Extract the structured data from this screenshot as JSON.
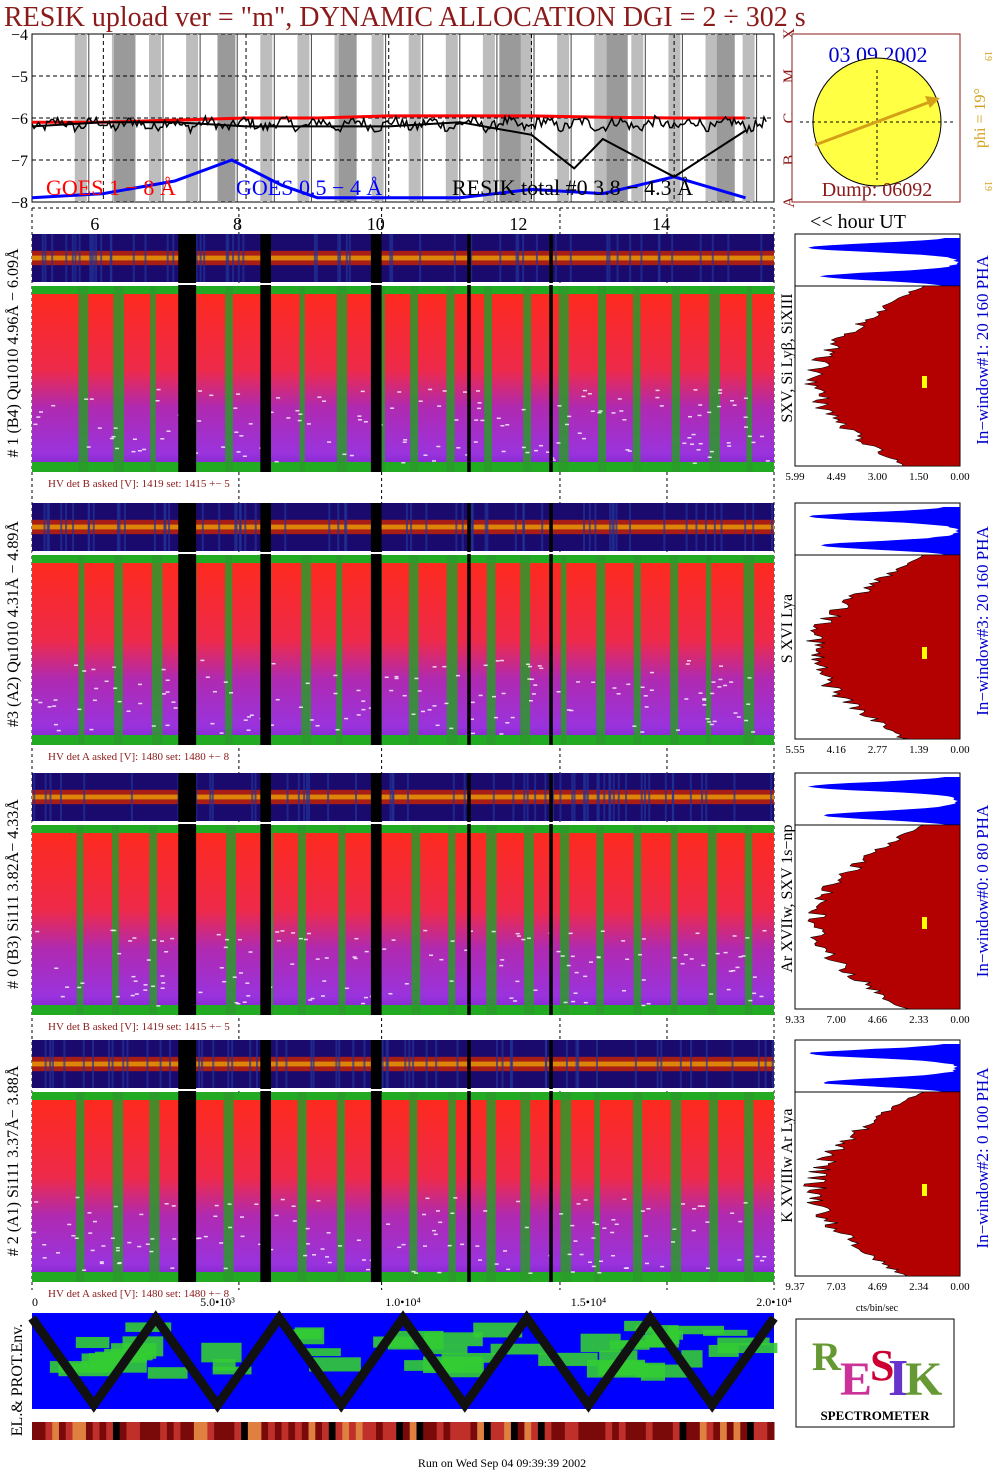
{
  "title": "RESIK upload ver = \"m\", DYNAMIC ALLOCATION  DGI =   2 ÷ 302 s",
  "colors": {
    "title": "#8b1a1a",
    "goes_long": "#ff0000",
    "goes_short": "#0000ff",
    "resik_total": "#000000",
    "pha_hist": "#0000ff",
    "pha_fill": "#b30000",
    "marker": "#ffff00",
    "sun": "#ffff44",
    "phi": "#d4a017",
    "env_bg": "#0000ff",
    "env_green": "#33cc33"
  },
  "goes_panel": {
    "y_ticks": [
      "−4",
      "−5",
      "−6",
      "−7",
      "−8"
    ],
    "class_labels": [
      "X",
      "M",
      "C",
      "B",
      "A"
    ],
    "legend": {
      "goes_long": "GOES 1 − 8 Å",
      "goes_short": "GOES 0.5 − 4 Å",
      "resik_total": "RESIK total #0  3.8 − 4.3 Å"
    }
  },
  "hour_axis": {
    "ticks": [
      "6",
      "8",
      "10",
      "12",
      "14"
    ],
    "label": "<< hour UT"
  },
  "sun_panel": {
    "date": "03 09 2002",
    "dump": "Dump: 06092",
    "phi": "phi = 19°",
    "phi_small_top": "19",
    "phi_small_bottom": "19"
  },
  "channels": [
    {
      "label": "# 1 (B4) Qu1010  4.96Å − 6.09Å",
      "line_label": "SXV, Si Lyβ, SiXIII",
      "window": "In−window#1:   20  160  PHA",
      "x_ticks": [
        "5.99",
        "4.49",
        "3.00",
        "1.50",
        "0.00"
      ],
      "hv": "HV det B asked [V]:  1419  set:   1415  +−     5"
    },
    {
      "label": "#3 (A2) Qu1010  4.31Å − 4.89Å",
      "line_label": "S XVI Lya",
      "window": "In−window#3:   20  160  PHA",
      "x_ticks": [
        "5.55",
        "4.16",
        "2.77",
        "1.39",
        "0.00"
      ],
      "hv": "HV det A asked [V]:  1480  set:   1480  +−     8"
    },
    {
      "label": "# 0 (B3) Si111  3.82Å− 4.33Å",
      "line_label": "Ar XVIIw,  SXV 1s−np",
      "window": "In−window#0:    0   80  PHA",
      "x_ticks": [
        "9.33",
        "7.00",
        "4.66",
        "2.33",
        "0.00"
      ],
      "hv": "HV det B asked [V]:  1419  set:   1415  +−     5"
    },
    {
      "label": "# 2 (A1) Si111  3.37Å− 3.88Å",
      "line_label": "K XVIIIw  Ar Lya",
      "window": "In−window#2:    0  100  PHA",
      "x_ticks": [
        "9.37",
        "7.03",
        "4.69",
        "2.34",
        "0.00"
      ],
      "hv": "HV det A asked [V]:  1480  set:   1480  +−     8"
    }
  ],
  "pha_xlabel": "cts/bin/sec",
  "env_panel": {
    "label": "EL.& PROT.Env.",
    "x_ticks": [
      "0",
      "5.0•10³",
      "1.0•10⁴",
      "1.5•10⁴",
      "2.0•10⁴"
    ]
  },
  "logo": {
    "text": "SPECTROMETER",
    "fine_print": ""
  },
  "footer": "Run on Wed Sep 04 09:39:39 2002",
  "chart_data": {
    "type": "line",
    "x_label": "hour UT",
    "x_range": [
      5.0,
      15.4
    ],
    "y_range": [
      -8,
      -4
    ],
    "y_scale": "log10 flux (W/m²)",
    "series": [
      {
        "name": "GOES 1 − 8 Å",
        "x": [
          5.0,
          6.0,
          7.0,
          8.0,
          9.0,
          10.0,
          11.0,
          12.0,
          13.0,
          14.0,
          15.0
        ],
        "y": [
          -6.1,
          -6.1,
          -6.05,
          -6.0,
          -6.0,
          -5.95,
          -5.95,
          -5.95,
          -5.98,
          -6.0,
          -6.0
        ]
      },
      {
        "name": "GOES 0.5 − 4 Å",
        "x": [
          5.0,
          6.0,
          7.0,
          7.8,
          8.5,
          9.0,
          10.0,
          11.0,
          12.0,
          13.0,
          14.0,
          15.0
        ],
        "y": [
          -7.9,
          -7.8,
          -7.5,
          -7.0,
          -7.6,
          -7.9,
          -7.9,
          -7.9,
          -7.7,
          -7.8,
          -7.4,
          -7.9
        ]
      },
      {
        "name": "RESIK total #0  3.8 − 4.3 Å",
        "x": [
          5.0,
          6.0,
          7.0,
          8.0,
          9.0,
          10.0,
          11.0,
          12.0,
          12.6,
          13.0,
          14.0,
          15.0
        ],
        "y": [
          -6.2,
          -6.1,
          -6.1,
          -6.2,
          -6.2,
          -6.2,
          -6.1,
          -6.4,
          -7.2,
          -6.5,
          -7.4,
          -6.3
        ]
      }
    ],
    "x_ticks": [
      "6",
      "8",
      "10",
      "12",
      "14"
    ],
    "y_ticks": [
      "−4",
      "−5",
      "−6",
      "−7",
      "−8"
    ],
    "grid": true
  }
}
